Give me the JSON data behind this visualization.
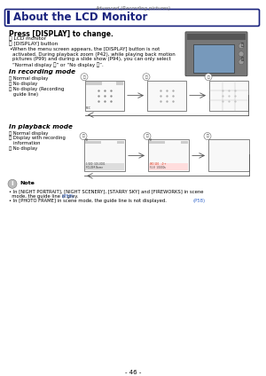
{
  "page_header": "Advanced (Recording pictures)",
  "page_number": "- 46 -",
  "title": "About the LCD Monitor",
  "press_label": "Press [DISPLAY] to change.",
  "item_a": "Ⓐ LCD monitor",
  "item_b": "Ⓑ [DISPLAY] button",
  "bullet_lines": [
    "When the menu screen appears, the [DISPLAY] button is not",
    "activated. During playback zoom (P42), while playing back motion",
    "pictures (P99) and during a slide show (P94), you can only select",
    "“Normal display ⓔ” or “No display ⓗ”."
  ],
  "recording_title": "In recording mode",
  "rec_items": [
    "Ⓐ Normal display",
    "Ⓑ No display",
    "Ⓒ No display (Recording",
    "   guide line)"
  ],
  "playback_title": "In playback mode",
  "pb_items": [
    "Ⓐ Normal display",
    "Ⓑ Display with recording",
    "   information",
    "Ⓒ No display"
  ],
  "note_line1": "• In [NIGHT PORTRAIT], [NIGHT SCENERY], [STARRY SKY] and [FIREWORKS] in scene",
  "note_line1b": "  mode, the guide line is grey. (P58)",
  "note_line2": "• In [PHOTO FRAME] in scene mode, the guide line is not displayed. (P58)",
  "bg": "#ffffff",
  "dark_blue": "#1a237e",
  "text": "#000000",
  "gray": "#888888",
  "blue_link": "#3366cc"
}
